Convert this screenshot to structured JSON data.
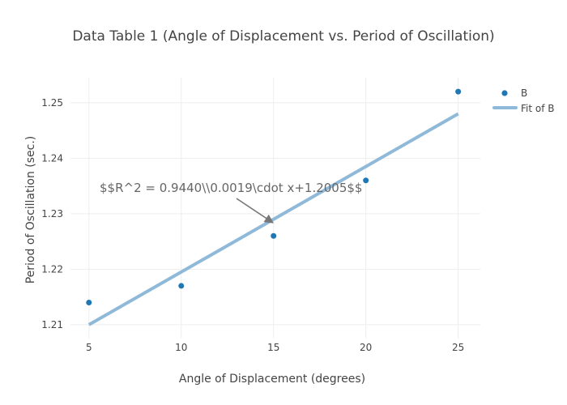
{
  "chart_data": {
    "type": "scatter",
    "title": "Data Table 1 (Angle of Displacement vs. Period of Oscillation)",
    "xlabel": "Angle of Displacement (degrees)",
    "ylabel": "Period of Oscillation (sec.)",
    "x_ticks": [
      5,
      10,
      15,
      20,
      25
    ],
    "y_ticks": [
      1.21,
      1.22,
      1.23,
      1.24,
      1.25
    ],
    "y_tick_labels": [
      "1.21",
      "1.22",
      "1.23",
      "1.24",
      "1.25"
    ],
    "xlim": [
      4,
      26.2
    ],
    "ylim": [
      1.2075,
      1.2545
    ],
    "grid": true,
    "legend_position": "top-right",
    "series": [
      {
        "name": "B",
        "mode": "markers",
        "color": "#1f77b4",
        "x": [
          5,
          10,
          15,
          20,
          25
        ],
        "y": [
          1.214,
          1.217,
          1.226,
          1.236,
          1.252
        ]
      },
      {
        "name": "Fit of B",
        "mode": "line",
        "color": "#8fb9d9",
        "x": [
          5,
          25
        ],
        "y": [
          1.21,
          1.248
        ]
      }
    ],
    "annotation": {
      "text": "$$R^2 = 0.9440\\\\0.0019\\cdot x+1.2005$$",
      "arrow_to": {
        "x": 15,
        "y": 1.229
      }
    }
  }
}
